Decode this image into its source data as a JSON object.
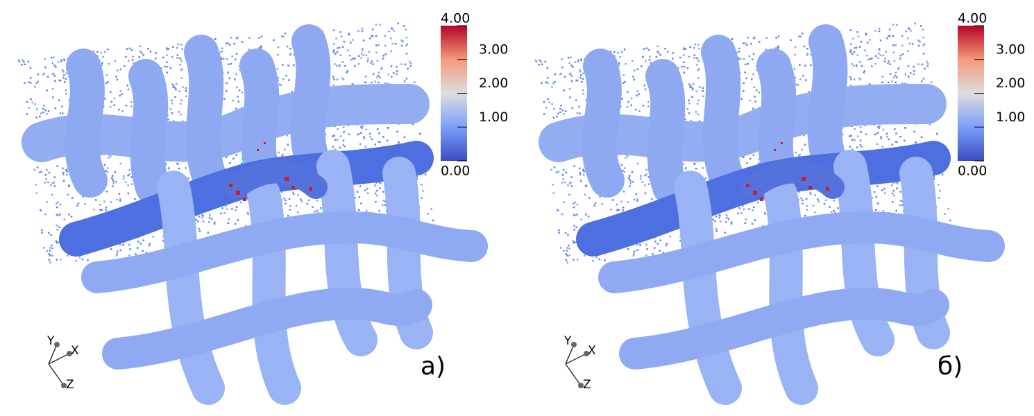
{
  "panels": [
    {
      "label": "а)",
      "colorbar": {
        "ticks": [
          {
            "value": 4,
            "label": "4.00"
          },
          {
            "value": 3,
            "label": "3.00"
          },
          {
            "value": 2,
            "label": "2.00"
          },
          {
            "value": 1,
            "label": "1.00"
          },
          {
            "value": 0,
            "label": "0.00"
          }
        ]
      },
      "axes": {
        "x": "X",
        "y": "Y",
        "z": "Z"
      }
    },
    {
      "label": "б)",
      "colorbar": {
        "ticks": [
          {
            "value": 4,
            "label": "4.00"
          },
          {
            "value": 3,
            "label": "3.00"
          },
          {
            "value": 2,
            "label": "2.00"
          },
          {
            "value": 1,
            "label": "1.00"
          },
          {
            "value": 0,
            "label": "0.00"
          }
        ]
      },
      "axes": {
        "x": "X",
        "y": "Y",
        "z": "Z"
      }
    }
  ]
}
